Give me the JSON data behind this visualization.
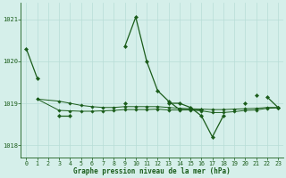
{
  "bg_color": "#d5efea",
  "grid_color": "#b8ddd6",
  "line_color": "#1a5c1a",
  "marker_color": "#1a5c1a",
  "xlabel": "Graphe pression niveau de la mer (hPa)",
  "xlabel_color": "#1a5c1a",
  "ylim": [
    1017.7,
    1021.4
  ],
  "xlim": [
    -0.5,
    23.5
  ],
  "yticks": [
    1018,
    1019,
    1020,
    1021
  ],
  "xticks": [
    0,
    1,
    2,
    3,
    4,
    5,
    6,
    7,
    8,
    9,
    10,
    11,
    12,
    13,
    14,
    15,
    16,
    17,
    18,
    19,
    20,
    21,
    22,
    23
  ],
  "line1_y": [
    1020.3,
    1019.6,
    null,
    null,
    null,
    null,
    null,
    null,
    null,
    1020.35,
    1021.05,
    1020.0,
    1019.3,
    1019.05,
    1018.85,
    1018.85,
    1018.85,
    null,
    null,
    null,
    null,
    1019.2,
    null,
    1018.9
  ],
  "line2_y": [
    null,
    null,
    null,
    1018.7,
    1018.7,
    null,
    null,
    null,
    null,
    1019.0,
    null,
    null,
    null,
    1019.0,
    1019.0,
    1018.9,
    1018.7,
    1018.2,
    1018.7,
    null,
    1019.0,
    null,
    1019.15,
    1018.9
  ],
  "line3_x": [
    1,
    3,
    4,
    5,
    6,
    7,
    8,
    9,
    10,
    11,
    12,
    13,
    14,
    15,
    16,
    17,
    18,
    19,
    20,
    21,
    22,
    23
  ],
  "line3_y": [
    1019.1,
    1019.05,
    1019.0,
    1018.95,
    1018.92,
    1018.9,
    1018.9,
    1018.92,
    1018.92,
    1018.92,
    1018.92,
    1018.9,
    1018.88,
    1018.87,
    1018.86,
    1018.85,
    1018.85,
    1018.86,
    1018.87,
    1018.88,
    1018.9,
    1018.9
  ],
  "line4_x": [
    1,
    3,
    4,
    5,
    6,
    7,
    8,
    9,
    10,
    11,
    12,
    13,
    14,
    15,
    16,
    17,
    18,
    19,
    20,
    21,
    22,
    23
  ],
  "line4_y": [
    1019.1,
    1018.83,
    1018.82,
    1018.81,
    1018.81,
    1018.82,
    1018.83,
    1018.85,
    1018.85,
    1018.85,
    1018.86,
    1018.84,
    1018.84,
    1018.84,
    1018.82,
    1018.78,
    1018.78,
    1018.8,
    1018.83,
    1018.84,
    1018.88,
    1018.89
  ]
}
